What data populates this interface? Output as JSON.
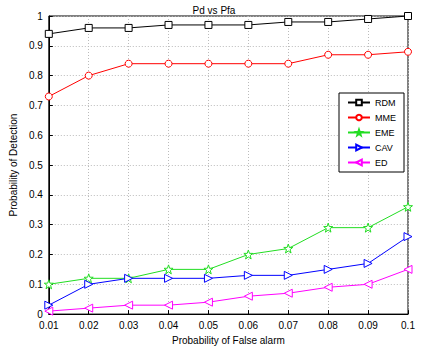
{
  "chart_data": {
    "type": "line",
    "title": "Pd vs Pfa",
    "x_label": "Probability of False alarm",
    "y_label": "Probability of Detection",
    "x": [
      0.01,
      0.02,
      0.03,
      0.04,
      0.05,
      0.06,
      0.07,
      0.08,
      0.09,
      0.1
    ],
    "xlim": [
      0.01,
      0.1
    ],
    "xticks": [
      0.01,
      0.02,
      0.03,
      0.04,
      0.05,
      0.06,
      0.07,
      0.08,
      0.09,
      0.1
    ],
    "ylim": [
      0,
      1
    ],
    "yticks": [
      0,
      0.1,
      0.2,
      0.3,
      0.4,
      0.5,
      0.6,
      0.7,
      0.8,
      0.9,
      1
    ],
    "grid": true,
    "legend": "right",
    "series": [
      {
        "name": "RDM",
        "color": "#000000",
        "marker": "square",
        "values": [
          0.94,
          0.96,
          0.96,
          0.97,
          0.97,
          0.97,
          0.98,
          0.98,
          0.99,
          1.0
        ]
      },
      {
        "name": "MME",
        "color": "#ff0000",
        "marker": "circle",
        "values": [
          0.73,
          0.8,
          0.84,
          0.84,
          0.84,
          0.84,
          0.84,
          0.87,
          0.87,
          0.88
        ]
      },
      {
        "name": "EME",
        "color": "#22dd22",
        "marker": "star",
        "values": [
          0.1,
          0.12,
          0.12,
          0.15,
          0.15,
          0.2,
          0.22,
          0.29,
          0.29,
          0.36
        ]
      },
      {
        "name": "CAV",
        "color": "#0000ff",
        "marker": "triangle-right",
        "values": [
          0.03,
          0.1,
          0.12,
          0.12,
          0.12,
          0.13,
          0.13,
          0.15,
          0.17,
          0.26
        ]
      },
      {
        "name": "ED",
        "color": "#ff00ff",
        "marker": "triangle-left",
        "values": [
          0.01,
          0.02,
          0.03,
          0.03,
          0.04,
          0.06,
          0.07,
          0.09,
          0.1,
          0.15
        ]
      }
    ]
  }
}
